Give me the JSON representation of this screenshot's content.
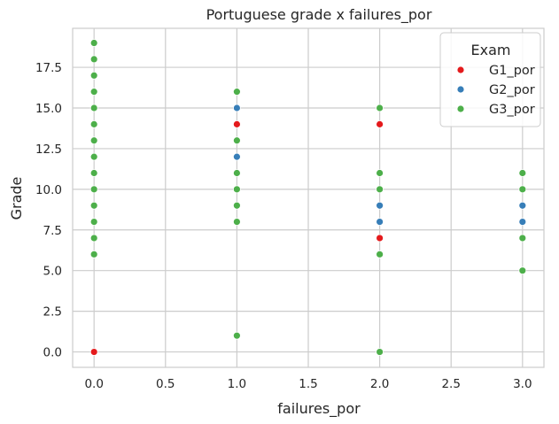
{
  "chart_data": {
    "type": "scatter",
    "title": "Portuguese grade x failures_por",
    "xlabel": "failures_por",
    "ylabel": "Grade",
    "xlim": [
      -0.15,
      3.15
    ],
    "ylim": [
      -0.95,
      19.9
    ],
    "x_ticks": [
      0.0,
      0.5,
      1.0,
      1.5,
      2.0,
      2.5,
      3.0
    ],
    "x_tick_labels": [
      "0.0",
      "0.5",
      "1.0",
      "1.5",
      "2.0",
      "2.5",
      "3.0"
    ],
    "y_ticks": [
      0.0,
      2.5,
      5.0,
      7.5,
      10.0,
      12.5,
      15.0,
      17.5
    ],
    "y_tick_labels": [
      "0.0",
      "2.5",
      "5.0",
      "7.5",
      "10.0",
      "12.5",
      "15.0",
      "17.5"
    ],
    "grid": true,
    "legend": {
      "title": "Exam",
      "placement": "top-right"
    },
    "series": [
      {
        "name": "G1_por",
        "color": "#e41a1c",
        "points": [
          [
            0,
            0
          ],
          [
            1,
            14
          ],
          [
            2,
            14
          ],
          [
            2,
            7
          ]
        ]
      },
      {
        "name": "G2_por",
        "color": "#377eb8",
        "points": [
          [
            1,
            15
          ],
          [
            1,
            12
          ],
          [
            2,
            9
          ],
          [
            2,
            8
          ],
          [
            3,
            9
          ],
          [
            3,
            8
          ]
        ]
      },
      {
        "name": "G3_por",
        "color": "#4daf4a",
        "points": [
          [
            0,
            19
          ],
          [
            0,
            18
          ],
          [
            0,
            17
          ],
          [
            0,
            16
          ],
          [
            0,
            15
          ],
          [
            0,
            14
          ],
          [
            0,
            13
          ],
          [
            0,
            12
          ],
          [
            0,
            11
          ],
          [
            0,
            10
          ],
          [
            0,
            9
          ],
          [
            0,
            8
          ],
          [
            0,
            7
          ],
          [
            0,
            6
          ],
          [
            1,
            16
          ],
          [
            1,
            13
          ],
          [
            1,
            11
          ],
          [
            1,
            10
          ],
          [
            1,
            9
          ],
          [
            1,
            8
          ],
          [
            1,
            1
          ],
          [
            2,
            15
          ],
          [
            2,
            11
          ],
          [
            2,
            10
          ],
          [
            2,
            6
          ],
          [
            2,
            0
          ],
          [
            3,
            11
          ],
          [
            3,
            10
          ],
          [
            3,
            7
          ],
          [
            3,
            5
          ]
        ]
      }
    ]
  }
}
